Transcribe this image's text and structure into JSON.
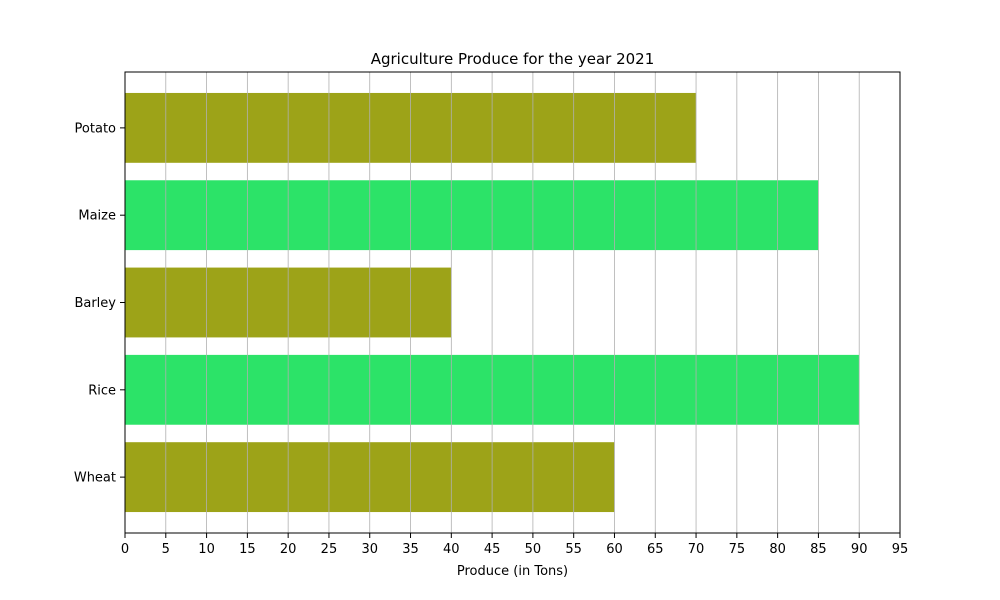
{
  "chart_data": {
    "type": "bar",
    "orientation": "horizontal",
    "title": "Agriculture Produce for the year 2021",
    "xlabel": "Produce (in Tons)",
    "ylabel": "",
    "categories": [
      "Wheat",
      "Rice",
      "Barley",
      "Maize",
      "Potato"
    ],
    "values": [
      60,
      90,
      40,
      85,
      70
    ],
    "bar_colors": [
      "#9da318",
      "#2ce368",
      "#9da318",
      "#2ce368",
      "#9da318"
    ],
    "xlim": [
      0,
      95
    ],
    "xticks": [
      0,
      5,
      10,
      15,
      20,
      25,
      30,
      35,
      40,
      45,
      50,
      55,
      60,
      65,
      70,
      75,
      80,
      85,
      90,
      95
    ],
    "grid": {
      "x": true,
      "y": false
    },
    "grid_color": "#b0b0b0"
  }
}
